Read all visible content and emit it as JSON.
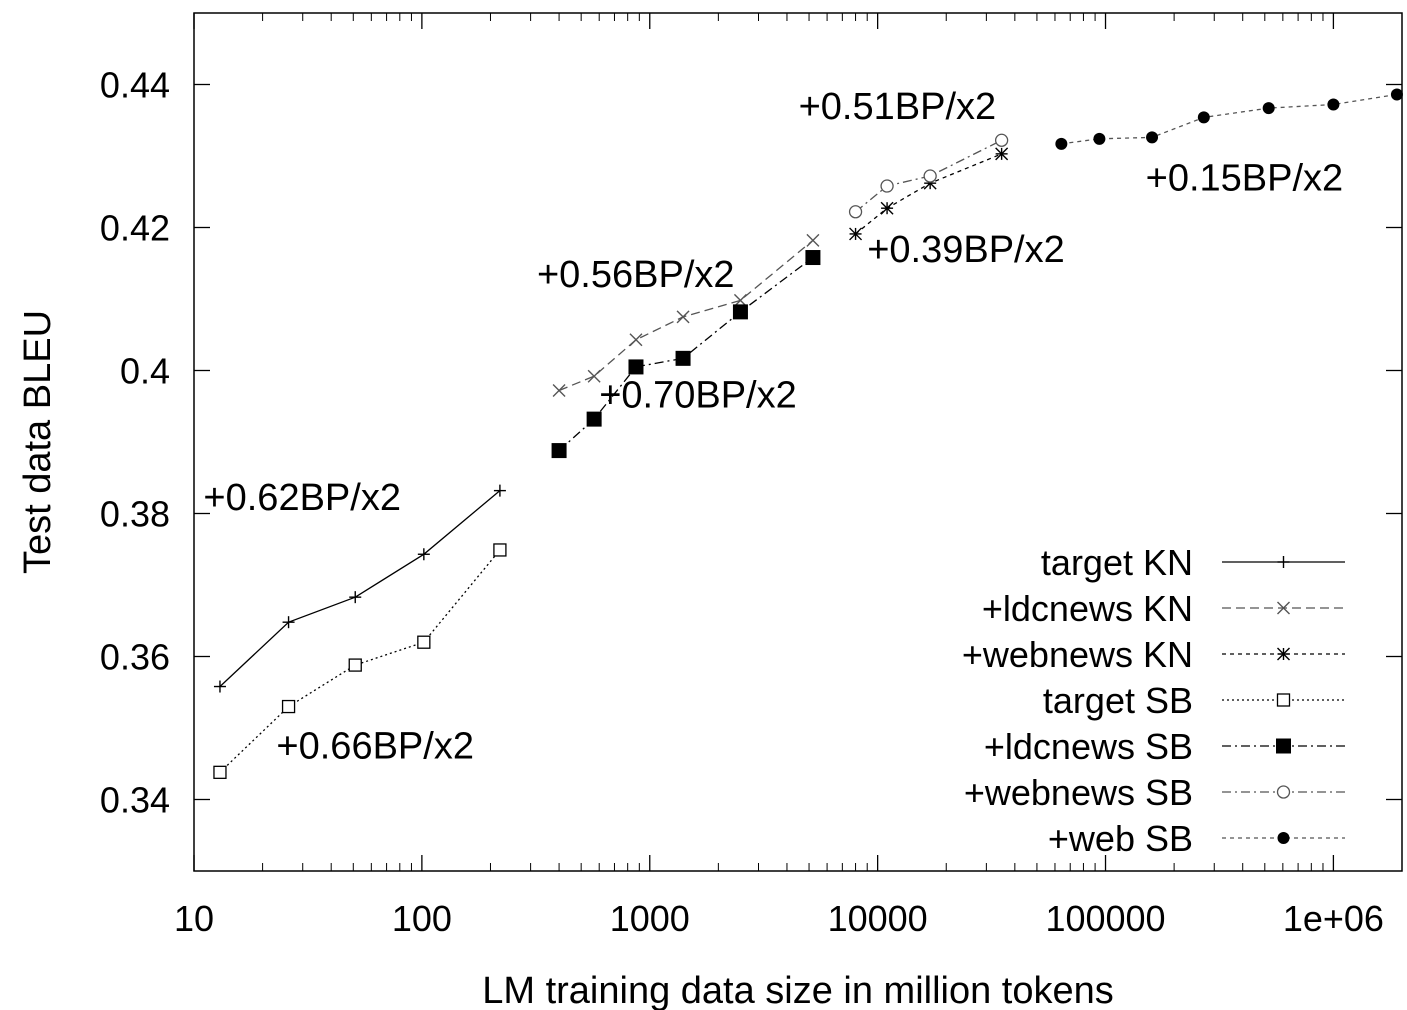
{
  "chart_data": {
    "type": "line",
    "title": "",
    "xlabel": "LM training data size in million tokens",
    "ylabel": "Test data BLEU",
    "xscale": "log",
    "xlim": [
      10,
      2000000
    ],
    "ylim": [
      0.33,
      0.45
    ],
    "x_ticks": [
      10,
      100,
      1000,
      10000,
      100000,
      1000000
    ],
    "x_tick_labels": [
      "10",
      "100",
      "1000",
      "10000",
      "100000",
      "1e+06"
    ],
    "y_ticks": [
      0.34,
      0.36,
      0.38,
      0.4,
      0.42,
      0.44
    ],
    "y_tick_labels": [
      "0.34",
      "0.36",
      "0.38",
      "0.4",
      "0.42",
      "0.44"
    ],
    "grid": false,
    "legend_position": "bottom-right",
    "series": [
      {
        "name": "target KN",
        "marker": "plus",
        "dash": "solid",
        "color": "#000000",
        "x": [
          13,
          26,
          51,
          102,
          220
        ],
        "y": [
          0.3558,
          0.3648,
          0.3683,
          0.3743,
          0.3832
        ]
      },
      {
        "name": "+ldcnews KN",
        "marker": "cross",
        "dash": "long-dash",
        "color": "#555555",
        "x": [
          400,
          570,
          870,
          1400,
          2500,
          5200
        ],
        "y": [
          0.3972,
          0.3992,
          0.4043,
          0.4075,
          0.4098,
          0.4182
        ]
      },
      {
        "name": "+webnews KN",
        "marker": "star",
        "dash": "short-dash",
        "color": "#000000",
        "x": [
          8000,
          11000,
          17000,
          35000
        ],
        "y": [
          0.4191,
          0.4227,
          0.4262,
          0.4303
        ]
      },
      {
        "name": "target SB",
        "marker": "open-square",
        "dash": "dotted",
        "color": "#000000",
        "x": [
          13,
          26,
          51,
          102,
          220
        ],
        "y": [
          0.3438,
          0.353,
          0.3588,
          0.362,
          0.3749
        ]
      },
      {
        "name": "+ldcnews SB",
        "marker": "filled-square",
        "dash": "dash-dot",
        "color": "#000000",
        "x": [
          400,
          570,
          870,
          1400,
          2500,
          5200
        ],
        "y": [
          0.3888,
          0.3932,
          0.4005,
          0.4017,
          0.4082,
          0.4158
        ]
      },
      {
        "name": "+webnews SB",
        "marker": "open-circle",
        "dash": "dash-dot",
        "color": "#555555",
        "x": [
          8000,
          11000,
          17000,
          35000
        ],
        "y": [
          0.4222,
          0.4258,
          0.4272,
          0.4322
        ]
      },
      {
        "name": "+web SB",
        "marker": "filled-circle",
        "dash": "short-dash",
        "color": "#555555",
        "x": [
          64000,
          94000,
          160000,
          270000,
          520000,
          1000000,
          1900000
        ],
        "y": [
          0.4317,
          0.4324,
          0.4326,
          0.4354,
          0.4367,
          0.4372,
          0.4386
        ]
      }
    ],
    "annotations": [
      {
        "text": "+0.62BP/x2",
        "x": 11,
        "y": 0.3805
      },
      {
        "text": "+0.66BP/x2",
        "x": 23,
        "y": 0.3457
      },
      {
        "text": "+0.56BP/x2",
        "x": 320,
        "y": 0.4117
      },
      {
        "text": "+0.70BP/x2",
        "x": 600,
        "y": 0.3948
      },
      {
        "text": "+0.51BP/x2",
        "x": 4500,
        "y": 0.4352
      },
      {
        "text": "+0.39BP/x2",
        "x": 9000,
        "y": 0.4152
      },
      {
        "text": "+0.15BP/x2",
        "x": 150000,
        "y": 0.4252
      }
    ]
  }
}
